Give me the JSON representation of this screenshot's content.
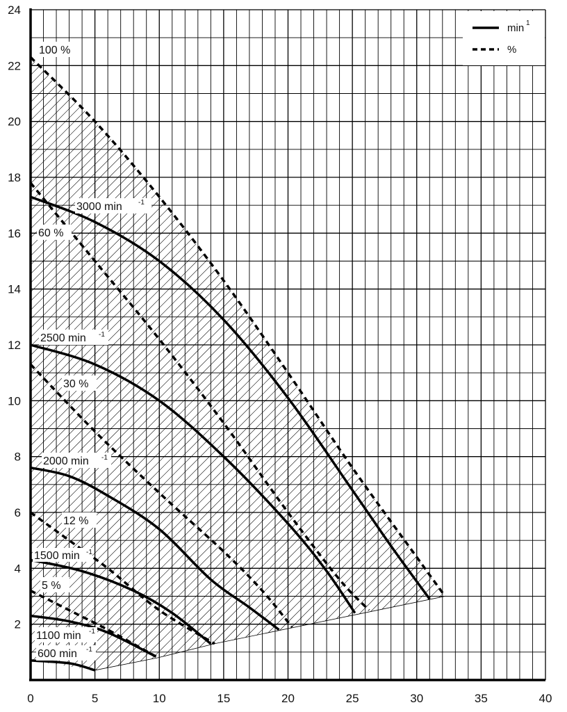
{
  "chart_data": {
    "type": "line",
    "title": "",
    "xlabel": "",
    "ylabel": "",
    "xlim": [
      0,
      40
    ],
    "ylim": [
      0,
      24
    ],
    "x_ticks": [
      "0",
      "5",
      "10",
      "15",
      "20",
      "25",
      "30",
      "35",
      "40"
    ],
    "y_ticks": [
      "2",
      "4",
      "6",
      "8",
      "10",
      "12",
      "14",
      "16",
      "18",
      "20",
      "22",
      "24"
    ],
    "grid": true,
    "legend": {
      "placement": "top-right",
      "entries": [
        {
          "style": "solid",
          "label": "min",
          "sup": "-1"
        },
        {
          "style": "dashed",
          "label": "%",
          "sup": ""
        }
      ]
    },
    "speed_curves": [
      {
        "label": "3000 min",
        "sup": "-1",
        "points": [
          [
            0,
            17.3
          ],
          [
            5,
            16.4
          ],
          [
            10,
            15.0
          ],
          [
            15,
            12.9
          ],
          [
            20,
            10.1
          ],
          [
            25,
            6.8
          ],
          [
            28,
            4.8
          ],
          [
            31,
            2.9
          ]
        ]
      },
      {
        "label": "2500 min",
        "sup": "-1",
        "points": [
          [
            0,
            12.0
          ],
          [
            5,
            11.3
          ],
          [
            10,
            10.0
          ],
          [
            15,
            8.0
          ],
          [
            20,
            5.6
          ],
          [
            23,
            3.9
          ],
          [
            25.2,
            2.4
          ]
        ]
      },
      {
        "label": "2000 min",
        "sup": "-1",
        "points": [
          [
            0,
            7.6
          ],
          [
            3,
            7.3
          ],
          [
            6,
            6.6
          ],
          [
            10,
            5.4
          ],
          [
            14,
            3.6
          ],
          [
            17,
            2.6
          ],
          [
            19.3,
            1.8
          ]
        ]
      },
      {
        "label": "1500 min",
        "sup": "-1",
        "points": [
          [
            0,
            4.3
          ],
          [
            4,
            3.9
          ],
          [
            8,
            3.2
          ],
          [
            11,
            2.4
          ],
          [
            14,
            1.3
          ]
        ]
      },
      {
        "label": "1100 min",
        "sup": "-1",
        "points": [
          [
            0,
            2.3
          ],
          [
            3,
            2.1
          ],
          [
            6,
            1.7
          ],
          [
            9.7,
            0.85
          ]
        ]
      },
      {
        "label": "600 min",
        "sup": "-1",
        "points": [
          [
            0,
            0.7
          ],
          [
            3,
            0.6
          ],
          [
            5,
            0.35
          ]
        ]
      }
    ],
    "efficiency_curves": [
      {
        "label": "100 %",
        "points": [
          [
            0,
            22.3
          ],
          [
            5,
            20.0
          ],
          [
            10,
            17.3
          ],
          [
            15,
            14.3
          ],
          [
            20,
            11.0
          ],
          [
            25,
            7.6
          ],
          [
            30,
            4.4
          ],
          [
            32.2,
            3.0
          ]
        ]
      },
      {
        "label": "60 %",
        "points": [
          [
            0,
            17.8
          ],
          [
            5,
            15.0
          ],
          [
            10,
            12.2
          ],
          [
            15,
            9.2
          ],
          [
            20,
            6.0
          ],
          [
            24,
            3.6
          ],
          [
            26.3,
            2.5
          ]
        ]
      },
      {
        "label": "30 %",
        "points": [
          [
            0,
            11.3
          ],
          [
            5,
            8.9
          ],
          [
            10,
            6.7
          ],
          [
            15,
            4.6
          ],
          [
            18,
            3.2
          ],
          [
            20.3,
            1.9
          ]
        ]
      },
      {
        "label": "12 %",
        "points": [
          [
            0,
            6.0
          ],
          [
            3,
            5.0
          ],
          [
            6,
            4.0
          ],
          [
            10,
            2.5
          ],
          [
            14.3,
            1.3
          ]
        ]
      },
      {
        "label": "5 %",
        "points": [
          [
            0,
            3.2
          ],
          [
            3,
            2.5
          ],
          [
            6,
            1.8
          ],
          [
            9.9,
            0.8
          ]
        ]
      }
    ],
    "operating_region": {
      "hatched": true,
      "boundary": [
        [
          0,
          22.3
        ],
        [
          5,
          20.0
        ],
        [
          10,
          17.3
        ],
        [
          15,
          14.3
        ],
        [
          20,
          11.0
        ],
        [
          25,
          7.6
        ],
        [
          30,
          4.4
        ],
        [
          32.2,
          3.0
        ],
        [
          14.3,
          1.3
        ],
        [
          9.9,
          0.8
        ],
        [
          5,
          0.35
        ],
        [
          0,
          0.7
        ]
      ]
    },
    "labels": {
      "eff_100": "100 %",
      "spd_3000": "3000 min",
      "eff_60": "60 %",
      "spd_2500": "2500 min",
      "eff_30": "30 %",
      "spd_2000": "2000 min",
      "eff_12": "12 %",
      "spd_1500": "1500 min",
      "eff_5": "5 %",
      "spd_1100": "1100 min",
      "spd_600": "600 min",
      "sup_neg1": "-1",
      "sup_1": "1"
    }
  }
}
